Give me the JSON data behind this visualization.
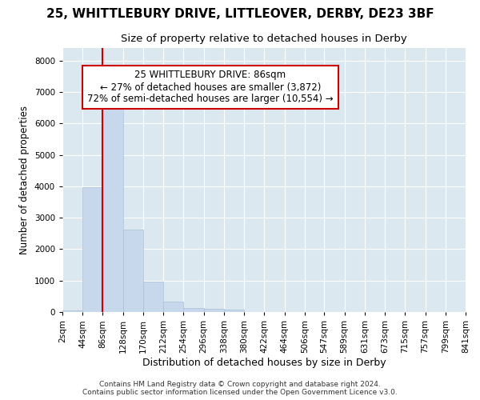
{
  "title": "25, WHITTLEBURY DRIVE, LITTLEOVER, DERBY, DE23 3BF",
  "subtitle": "Size of property relative to detached houses in Derby",
  "xlabel": "Distribution of detached houses by size in Derby",
  "ylabel": "Number of detached properties",
  "footer_line1": "Contains HM Land Registry data © Crown copyright and database right 2024.",
  "footer_line2": "Contains public sector information licensed under the Open Government Licence v3.0.",
  "bar_edges": [
    2,
    44,
    86,
    128,
    170,
    212,
    254,
    296,
    338,
    380,
    422,
    464,
    506,
    547,
    589,
    631,
    673,
    715,
    757,
    799,
    841
  ],
  "bar_heights": [
    60,
    3980,
    6620,
    2620,
    960,
    330,
    140,
    100,
    70,
    0,
    0,
    0,
    0,
    0,
    0,
    0,
    0,
    0,
    0,
    0
  ],
  "bar_color": "#c8d8ec",
  "bar_edgecolor": "#a8c0d8",
  "bar_linewidth": 0.5,
  "vline_x": 86,
  "vline_color": "#cc0000",
  "vline_linewidth": 1.5,
  "annotation_line1": "25 WHITTLEBURY DRIVE: 86sqm",
  "annotation_line2": "← 27% of detached houses are smaller (3,872)",
  "annotation_line3": "72% of semi-detached houses are larger (10,554) →",
  "annotation_box_color": "#cc0000",
  "ylim": [
    0,
    8400
  ],
  "yticks": [
    0,
    1000,
    2000,
    3000,
    4000,
    5000,
    6000,
    7000,
    8000
  ],
  "bg_color": "#ffffff",
  "plot_bg_color": "#dce8f0",
  "grid_color": "#ffffff",
  "title_fontsize": 11,
  "subtitle_fontsize": 9.5,
  "tick_fontsize": 7.5,
  "ylabel_fontsize": 8.5,
  "xlabel_fontsize": 9,
  "footer_fontsize": 6.5
}
